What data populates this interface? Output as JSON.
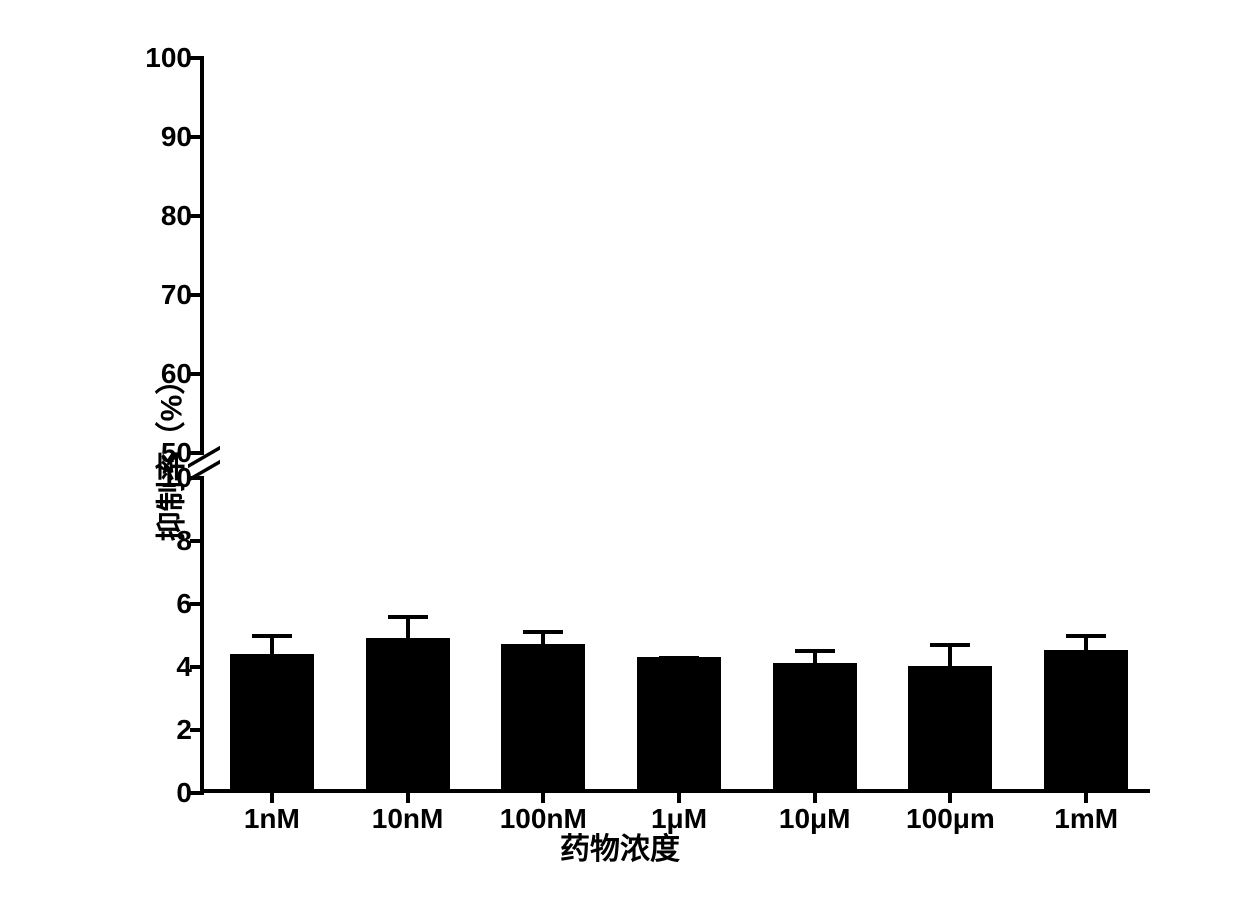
{
  "chart": {
    "type": "bar",
    "y_axis_title": "抑制率（%）",
    "x_axis_title": "药物浓度",
    "background_color": "#ffffff",
    "bar_color": "#000000",
    "axis_color": "#000000",
    "axis_width": 4,
    "title_fontsize": 30,
    "label_fontsize": 28,
    "y_upper": {
      "min": 50,
      "max": 100,
      "ticks": [
        50,
        60,
        70,
        80,
        90,
        100
      ],
      "tick_labels": [
        "50",
        "60",
        "70",
        "80",
        "90",
        "100"
      ]
    },
    "y_lower": {
      "min": 0,
      "max": 10,
      "ticks": [
        0,
        2,
        4,
        6,
        8,
        10
      ],
      "tick_labels": [
        "0",
        "2",
        "4",
        "6",
        "8",
        "10"
      ]
    },
    "categories": [
      "1nM",
      "10nM",
      "100nM",
      "1μM",
      "10μM",
      "100μm",
      "1mM"
    ],
    "values": [
      4.3,
      4.8,
      4.6,
      4.2,
      4.0,
      3.9,
      4.4
    ],
    "errors": [
      0.7,
      0.8,
      0.5,
      0.1,
      0.5,
      0.8,
      0.6
    ],
    "bar_width": 0.62,
    "error_cap_width": 40,
    "error_line_width": 4
  }
}
